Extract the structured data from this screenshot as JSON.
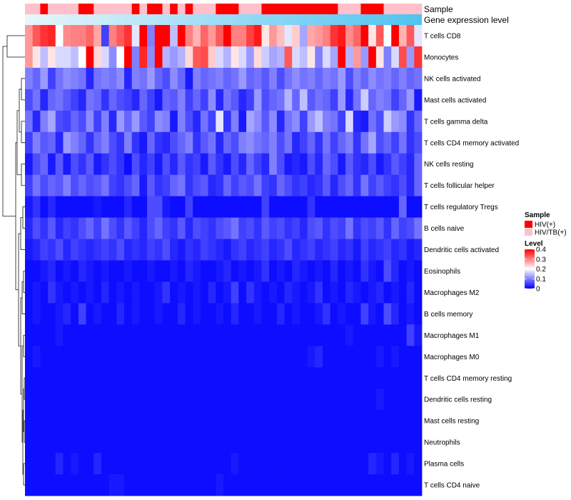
{
  "chart_data": {
    "type": "heatmap",
    "annotations": {
      "sample_label": "Sample",
      "gene_label": "Gene expression level"
    },
    "rows": [
      "T cells CD8",
      "Monocytes",
      "NK cells activated",
      "Mast cells activated",
      "T cells gamma delta",
      "T cells CD4 memory activated",
      "NK cells resting",
      "T cells follicular helper",
      "T cells regulatory  Tregs",
      "B cells naive",
      "Dendritic cells activated",
      "Eosinophils",
      "Macrophages M2",
      "B cells memory",
      "Macrophages M1",
      "Macrophages M0",
      "T cells CD4 memory resting",
      "Dendritic cells resting",
      "Mast cells resting",
      "Neutrophils",
      "Plasma cells",
      "T cells CD4 naive"
    ],
    "samples": [
      "HIV/TB(+)",
      "HIV/TB(+)",
      "HIV(+)",
      "HIV/TB(+)",
      "HIV/TB(+)",
      "HIV/TB(+)",
      "HIV/TB(+)",
      "HIV(+)",
      "HIV(+)",
      "HIV/TB(+)",
      "HIV/TB(+)",
      "HIV/TB(+)",
      "HIV/TB(+)",
      "HIV/TB(+)",
      "HIV(+)",
      "HIV/TB(+)",
      "HIV(+)",
      "HIV(+)",
      "HIV/TB(+)",
      "HIV(+)",
      "HIV/TB(+)",
      "HIV(+)",
      "HIV/TB(+)",
      "HIV/TB(+)",
      "HIV/TB(+)",
      "HIV(+)",
      "HIV(+)",
      "HIV(+)",
      "HIV/TB(+)",
      "HIV/TB(+)",
      "HIV/TB(+)",
      "HIV(+)",
      "HIV(+)",
      "HIV(+)",
      "HIV(+)",
      "HIV(+)",
      "HIV(+)",
      "HIV(+)",
      "HIV(+)",
      "HIV(+)",
      "HIV(+)",
      "HIV/TB(+)",
      "HIV/TB(+)",
      "HIV/TB(+)",
      "HIV(+)",
      "HIV(+)",
      "HIV(+)",
      "HIV/TB(+)",
      "HIV/TB(+)",
      "HIV/TB(+)",
      "HIV/TB(+)",
      "HIV/TB(+)"
    ],
    "values": [
      [
        0.28,
        0.33,
        0.36,
        0.37,
        0.2,
        0.29,
        0.3,
        0.3,
        0.32,
        0.27,
        0.05,
        0.3,
        0.33,
        0.36,
        0.18,
        0.4,
        0.1,
        0.4,
        0.4,
        0.15,
        0.4,
        0.3,
        0.26,
        0.32,
        0.28,
        0.33,
        0.4,
        0.3,
        0.3,
        0.35,
        0.38,
        0.22,
        0.28,
        0.25,
        0.18,
        0.24,
        0.13,
        0.27,
        0.28,
        0.3,
        0.36,
        0.38,
        0.29,
        0.32,
        0.4,
        0.22,
        0.33,
        0.2,
        0.4,
        0.26,
        0.33,
        0.18
      ],
      [
        0.28,
        0.22,
        0.15,
        0.22,
        0.17,
        0.17,
        0.15,
        0.2,
        0.4,
        0.23,
        0.17,
        0.11,
        0.2,
        0.4,
        0.1,
        0.37,
        0.11,
        0.4,
        0.14,
        0.12,
        0.14,
        0.23,
        0.33,
        0.34,
        0.24,
        0.17,
        0.14,
        0.22,
        0.17,
        0.12,
        0.23,
        0.16,
        0.13,
        0.14,
        0.33,
        0.17,
        0.15,
        0.22,
        0.1,
        0.17,
        0.13,
        0.4,
        0.14,
        0.28,
        0.12,
        0.4,
        0.22,
        0.1,
        0.17,
        0.34,
        0.12,
        0.36
      ],
      [
        0.1,
        0.08,
        0.12,
        0.05,
        0.09,
        0.11,
        0.1,
        0.09,
        0.03,
        0.09,
        0.1,
        0.09,
        0.11,
        0.03,
        0.1,
        0.09,
        0.12,
        0.08,
        0.06,
        0.11,
        0.08,
        0.02,
        0.1,
        0.08,
        0.09,
        0.1,
        0.08,
        0.09,
        0.12,
        0.08,
        0.09,
        0.07,
        0.1,
        0.06,
        0.09,
        0.11,
        0.09,
        0.1,
        0.08,
        0.1,
        0.09,
        0.12,
        0.06,
        0.1,
        0.08,
        0.11,
        0.09,
        0.1,
        0.08,
        0.1,
        0.08,
        0.09
      ],
      [
        0.06,
        0.09,
        0.03,
        0.08,
        0.09,
        0.07,
        0.05,
        0.03,
        0.09,
        0.08,
        0.04,
        0.08,
        0.06,
        0.05,
        0.03,
        0.08,
        0.05,
        0.02,
        0.08,
        0.07,
        0.1,
        0.05,
        0.08,
        0.05,
        0.11,
        0.03,
        0.09,
        0.07,
        0.03,
        0.05,
        0.12,
        0.06,
        0.08,
        0.09,
        0.14,
        0.08,
        0.15,
        0.07,
        0.09,
        0.08,
        0.05,
        0.12,
        0.03,
        0.09,
        0.16,
        0.08,
        0.1,
        0.09,
        0.05,
        0.08,
        0.12,
        0.02
      ],
      [
        0.09,
        0.03,
        0.1,
        0.13,
        0.06,
        0.05,
        0.08,
        0.06,
        0.11,
        0.05,
        0.1,
        0.03,
        0.12,
        0.08,
        0.12,
        0.07,
        0.05,
        0.11,
        0.1,
        0.02,
        0.1,
        0.06,
        0.03,
        0.09,
        0.05,
        0.18,
        0.04,
        0.1,
        0.02,
        0.13,
        0.11,
        0.07,
        0.11,
        0.03,
        0.09,
        0.11,
        0.05,
        0.12,
        0.15,
        0.1,
        0.09,
        0.05,
        0.17,
        0.03,
        0.02,
        0.09,
        0.06,
        0.16,
        0.12,
        0.11,
        0.04,
        0.08
      ],
      [
        0.05,
        0.1,
        0.07,
        0.08,
        0.03,
        0.12,
        0.1,
        0.08,
        0.04,
        0.08,
        0.1,
        0.06,
        0.04,
        0.1,
        0.04,
        0.02,
        0.08,
        0.04,
        0.03,
        0.06,
        0.08,
        0.1,
        0.04,
        0.07,
        0.09,
        0.03,
        0.08,
        0.06,
        0.1,
        0.11,
        0.09,
        0.08,
        0.1,
        0.06,
        0.09,
        0.03,
        0.05,
        0.08,
        0.04,
        0.09,
        0.05,
        0.08,
        0.1,
        0.04,
        0.09,
        0.13,
        0.06,
        0.08,
        0.05,
        0.09,
        0.04,
        0.06
      ],
      [
        0.02,
        0.06,
        0.08,
        0.02,
        0.07,
        0.02,
        0.06,
        0.04,
        0.07,
        0.02,
        0.04,
        0.06,
        0.04,
        0.01,
        0.06,
        0.03,
        0.05,
        0.02,
        0.06,
        0.03,
        0.07,
        0.04,
        0.05,
        0.02,
        0.07,
        0.04,
        0.02,
        0.06,
        0.03,
        0.08,
        0.05,
        0.03,
        0.1,
        0.06,
        0.02,
        0.03,
        0.02,
        0.06,
        0.03,
        0.08,
        0.06,
        0.02,
        0.07,
        0.04,
        0.03,
        0.06,
        0.02,
        0.04,
        0.07,
        0.05,
        0.03,
        0.08
      ],
      [
        0.05,
        0.09,
        0.06,
        0.08,
        0.07,
        0.1,
        0.06,
        0.08,
        0.06,
        0.07,
        0.09,
        0.05,
        0.04,
        0.06,
        0.08,
        0.02,
        0.07,
        0.04,
        0.05,
        0.08,
        0.09,
        0.04,
        0.06,
        0.07,
        0.03,
        0.04,
        0.08,
        0.05,
        0.07,
        0.06,
        0.09,
        0.05,
        0.04,
        0.08,
        0.06,
        0.04,
        0.05,
        0.03,
        0.04,
        0.07,
        0.03,
        0.06,
        0.08,
        0.04,
        0.09,
        0.05,
        0.07,
        0.05,
        0.04,
        0.06,
        0.03,
        0.08
      ],
      [
        0.02,
        0.04,
        0.01,
        0.03,
        0.01,
        0.01,
        0.01,
        0.01,
        0.01,
        0.02,
        0.01,
        0.01,
        0.01,
        0.03,
        0.01,
        0.01,
        0.06,
        0.06,
        0.02,
        0.01,
        0.01,
        0.05,
        0.01,
        0.01,
        0.01,
        0.01,
        0.01,
        0.01,
        0.01,
        0.01,
        0.01,
        0.05,
        0.01,
        0.01,
        0.01,
        0.01,
        0.01,
        0.04,
        0.01,
        0.01,
        0.01,
        0.01,
        0.01,
        0.01,
        0.01,
        0.01,
        0.01,
        0.01,
        0.01,
        0.08,
        0.01,
        0.01
      ],
      [
        0.03,
        0.06,
        0.04,
        0.07,
        0.03,
        0.05,
        0.04,
        0.06,
        0.08,
        0.05,
        0.09,
        0.06,
        0.04,
        0.07,
        0.05,
        0.03,
        0.06,
        0.08,
        0.05,
        0.04,
        0.07,
        0.03,
        0.06,
        0.05,
        0.04,
        0.06,
        0.07,
        0.09,
        0.05,
        0.06,
        0.04,
        0.07,
        0.05,
        0.06,
        0.04,
        0.05,
        0.03,
        0.06,
        0.07,
        0.04,
        0.06,
        0.05,
        0.09,
        0.04,
        0.06,
        0.05,
        0.07,
        0.04,
        0.08,
        0.05,
        0.06,
        0.09
      ],
      [
        0.02,
        0.03,
        0.05,
        0.04,
        0.06,
        0.03,
        0.05,
        0.04,
        0.03,
        0.04,
        0.05,
        0.04,
        0.06,
        0.03,
        0.04,
        0.03,
        0.05,
        0.04,
        0.06,
        0.03,
        0.02,
        0.04,
        0.03,
        0.05,
        0.04,
        0.03,
        0.02,
        0.04,
        0.05,
        0.03,
        0.04,
        0.05,
        0.03,
        0.04,
        0.06,
        0.03,
        0.04,
        0.05,
        0.03,
        0.04,
        0.05,
        0.03,
        0.04,
        0.02,
        0.05,
        0.03,
        0.04,
        0.05,
        0.03,
        0.04,
        0.02,
        0.03
      ],
      [
        0.01,
        0.01,
        0.02,
        0.03,
        0.01,
        0.02,
        0.01,
        0.03,
        0.02,
        0.01,
        0.02,
        0.01,
        0.01,
        0.02,
        0.01,
        0.01,
        0.02,
        0.01,
        0.01,
        0.02,
        0.01,
        0.03,
        0.02,
        0.01,
        0.01,
        0.02,
        0.03,
        0.01,
        0.02,
        0.01,
        0.02,
        0.04,
        0.01,
        0.02,
        0.01,
        0.03,
        0.02,
        0.01,
        0.02,
        0.01,
        0.03,
        0.01,
        0.02,
        0.01,
        0.04,
        0.02,
        0.01,
        0.06,
        0.03,
        0.01,
        0.02,
        0.01
      ],
      [
        0.01,
        0.02,
        0.01,
        0.04,
        0.02,
        0.01,
        0.02,
        0.01,
        0.02,
        0.01,
        0.03,
        0.01,
        0.02,
        0.01,
        0.02,
        0.01,
        0.01,
        0.02,
        0.04,
        0.01,
        0.02,
        0.01,
        0.02,
        0.01,
        0.03,
        0.01,
        0.02,
        0.05,
        0.01,
        0.04,
        0.02,
        0.01,
        0.02,
        0.01,
        0.03,
        0.02,
        0.01,
        0.02,
        0.04,
        0.01,
        0.02,
        0.01,
        0.03,
        0.02,
        0.01,
        0.02,
        0.03,
        0.01,
        0.02,
        0.01,
        0.03,
        0.01
      ],
      [
        0.01,
        0.02,
        0.01,
        0.01,
        0.02,
        0.03,
        0.01,
        0.05,
        0.01,
        0.02,
        0.01,
        0.01,
        0.03,
        0.01,
        0.02,
        0.01,
        0.01,
        0.02,
        0.01,
        0.01,
        0.03,
        0.01,
        0.02,
        0.01,
        0.01,
        0.02,
        0.01,
        0.03,
        0.01,
        0.01,
        0.02,
        0.01,
        0.01,
        0.03,
        0.01,
        0.02,
        0.01,
        0.01,
        0.02,
        0.04,
        0.01,
        0.02,
        0.01,
        0.01,
        0.05,
        0.02,
        0.01,
        0.06,
        0.03,
        0.01,
        0.02,
        0.01
      ],
      [
        0.01,
        0.01,
        0.01,
        0.01,
        0.02,
        0.01,
        0.01,
        0.01,
        0.01,
        0.01,
        0.01,
        0.01,
        0.01,
        0.01,
        0.01,
        0.01,
        0.01,
        0.01,
        0.01,
        0.01,
        0.01,
        0.01,
        0.01,
        0.01,
        0.01,
        0.01,
        0.01,
        0.01,
        0.01,
        0.01,
        0.01,
        0.01,
        0.01,
        0.01,
        0.01,
        0.01,
        0.01,
        0.01,
        0.01,
        0.01,
        0.01,
        0.01,
        0.02,
        0.01,
        0.01,
        0.01,
        0.01,
        0.01,
        0.01,
        0.01,
        0.05,
        0.02
      ],
      [
        0.01,
        0.02,
        0.01,
        0.01,
        0.01,
        0.01,
        0.01,
        0.01,
        0.01,
        0.01,
        0.01,
        0.01,
        0.01,
        0.01,
        0.01,
        0.01,
        0.01,
        0.01,
        0.01,
        0.01,
        0.01,
        0.01,
        0.01,
        0.01,
        0.01,
        0.01,
        0.01,
        0.01,
        0.01,
        0.01,
        0.01,
        0.01,
        0.01,
        0.01,
        0.01,
        0.01,
        0.01,
        0.02,
        0.03,
        0.01,
        0.01,
        0.01,
        0.01,
        0.01,
        0.01,
        0.01,
        0.02,
        0.01,
        0.02,
        0.01,
        0.01,
        0.01
      ],
      [
        0.01,
        0.01,
        0.01,
        0.01,
        0.01,
        0.01,
        0.01,
        0.01,
        0.01,
        0.01,
        0.01,
        0.01,
        0.01,
        0.01,
        0.01,
        0.01,
        0.01,
        0.01,
        0.01,
        0.01,
        0.01,
        0.01,
        0.01,
        0.01,
        0.01,
        0.01,
        0.01,
        0.01,
        0.01,
        0.01,
        0.01,
        0.01,
        0.01,
        0.01,
        0.01,
        0.01,
        0.01,
        0.01,
        0.01,
        0.01,
        0.01,
        0.01,
        0.01,
        0.01,
        0.01,
        0.01,
        0.01,
        0.01,
        0.01,
        0.01,
        0.01,
        0.01
      ],
      [
        0.01,
        0.01,
        0.01,
        0.01,
        0.01,
        0.01,
        0.01,
        0.01,
        0.01,
        0.01,
        0.01,
        0.01,
        0.01,
        0.01,
        0.01,
        0.01,
        0.01,
        0.01,
        0.01,
        0.01,
        0.01,
        0.01,
        0.01,
        0.01,
        0.01,
        0.01,
        0.01,
        0.01,
        0.01,
        0.01,
        0.01,
        0.01,
        0.01,
        0.01,
        0.01,
        0.01,
        0.01,
        0.01,
        0.01,
        0.01,
        0.01,
        0.01,
        0.01,
        0.01,
        0.01,
        0.01,
        0.02,
        0.01,
        0.01,
        0.01,
        0.01,
        0.01
      ],
      [
        0.01,
        0.01,
        0.01,
        0.01,
        0.01,
        0.01,
        0.01,
        0.01,
        0.01,
        0.01,
        0.01,
        0.01,
        0.01,
        0.01,
        0.01,
        0.01,
        0.01,
        0.01,
        0.01,
        0.01,
        0.01,
        0.01,
        0.01,
        0.01,
        0.01,
        0.01,
        0.01,
        0.01,
        0.01,
        0.01,
        0.01,
        0.01,
        0.01,
        0.01,
        0.01,
        0.01,
        0.01,
        0.01,
        0.01,
        0.01,
        0.01,
        0.01,
        0.01,
        0.01,
        0.01,
        0.01,
        0.01,
        0.01,
        0.01,
        0.01,
        0.01,
        0.01
      ],
      [
        0.01,
        0.01,
        0.01,
        0.01,
        0.01,
        0.01,
        0.01,
        0.01,
        0.01,
        0.01,
        0.01,
        0.01,
        0.01,
        0.01,
        0.01,
        0.01,
        0.01,
        0.01,
        0.01,
        0.01,
        0.01,
        0.01,
        0.01,
        0.01,
        0.01,
        0.01,
        0.01,
        0.01,
        0.01,
        0.01,
        0.01,
        0.01,
        0.01,
        0.01,
        0.01,
        0.01,
        0.01,
        0.01,
        0.01,
        0.01,
        0.01,
        0.01,
        0.01,
        0.01,
        0.01,
        0.01,
        0.01,
        0.01,
        0.01,
        0.01,
        0.01,
        0.01
      ],
      [
        0.01,
        0.01,
        0.01,
        0.01,
        0.03,
        0.01,
        0.02,
        0.01,
        0.01,
        0.03,
        0.01,
        0.01,
        0.01,
        0.01,
        0.01,
        0.01,
        0.01,
        0.01,
        0.01,
        0.01,
        0.01,
        0.01,
        0.01,
        0.01,
        0.01,
        0.01,
        0.01,
        0.02,
        0.01,
        0.01,
        0.01,
        0.01,
        0.01,
        0.01,
        0.01,
        0.01,
        0.01,
        0.01,
        0.01,
        0.01,
        0.01,
        0.01,
        0.01,
        0.01,
        0.01,
        0.03,
        0.02,
        0.01,
        0.03,
        0.01,
        0.02,
        0.01
      ],
      [
        0.01,
        0.01,
        0.01,
        0.01,
        0.01,
        0.01,
        0.01,
        0.01,
        0.01,
        0.01,
        0.01,
        0.02,
        0.02,
        0.01,
        0.01,
        0.01,
        0.01,
        0.01,
        0.01,
        0.01,
        0.01,
        0.01,
        0.01,
        0.01,
        0.01,
        0.02,
        0.01,
        0.01,
        0.01,
        0.01,
        0.01,
        0.01,
        0.01,
        0.01,
        0.01,
        0.01,
        0.01,
        0.01,
        0.01,
        0.01,
        0.01,
        0.01,
        0.01,
        0.01,
        0.01,
        0.01,
        0.01,
        0.01,
        0.01,
        0.01,
        0.01,
        0.01
      ]
    ],
    "color_scale": {
      "low": "#0000FF",
      "mid": "#FFFFFF",
      "high": "#FF0000",
      "mid_value": 0.2,
      "range": [
        0,
        0.4
      ]
    },
    "legend": {
      "sample_title": "Sample",
      "sample_items": [
        {
          "label": "HIV(+)",
          "color": "#FF0000"
        },
        {
          "label": "HIV/TB(+)",
          "color": "#FFC0CB"
        }
      ],
      "level_title": "Level",
      "level_ticks": [
        "0.4",
        "0.3",
        "0.2",
        "0.1",
        "0"
      ],
      "level_tick_values": [
        0.4,
        0.3,
        0.2,
        0.1,
        0
      ]
    },
    "gene_bar_colors": [
      "#E8F6FB",
      "#4FC3F0"
    ]
  }
}
